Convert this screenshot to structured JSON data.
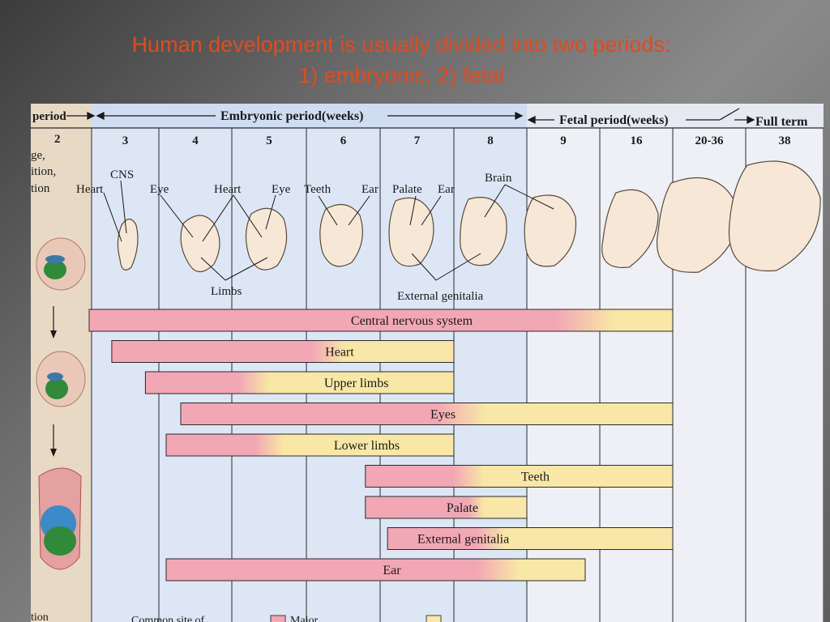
{
  "slide": {
    "title_line1": "Human development is usually divided into two periods:",
    "title_line2": "1) embryonic,  2) fetal"
  },
  "figure": {
    "header": {
      "left_period": "period",
      "embryonic": "Embryonic period(weeks)",
      "fetal": "Fetal period(weeks)",
      "full_term": "Full term"
    },
    "left_col": {
      "week": "2",
      "labels": [
        "ge,",
        "ition,",
        "tion"
      ]
    },
    "weeks": [
      "3",
      "4",
      "5",
      "6",
      "7",
      "8",
      "9",
      "16",
      "20-36",
      "38"
    ],
    "organ_labels": [
      {
        "text": "CNS",
        "id": "cns"
      },
      {
        "text": "Heart",
        "id": "heart-3"
      },
      {
        "text": "Eye",
        "id": "eye-4"
      },
      {
        "text": "Heart",
        "id": "heart-5"
      },
      {
        "text": "Eye",
        "id": "eye-5"
      },
      {
        "text": "Teeth",
        "id": "teeth"
      },
      {
        "text": "Ear",
        "id": "ear-6"
      },
      {
        "text": "Palate",
        "id": "palate"
      },
      {
        "text": "Ear",
        "id": "ear-8"
      },
      {
        "text": "Brain",
        "id": "brain"
      },
      {
        "text": "Limbs",
        "id": "limbs"
      },
      {
        "text": "External genitalia",
        "id": "ext-genitalia"
      }
    ],
    "bars": [
      {
        "label": "Central nervous system",
        "start": 3,
        "major_end": 9.8,
        "end": 11
      },
      {
        "label": "Heart",
        "start": 3.3,
        "major_end": 6.3,
        "end": 8
      },
      {
        "label": "Upper limbs",
        "start": 3.8,
        "major_end": 5.3,
        "end": 8
      },
      {
        "label": "Eyes",
        "start": 4.3,
        "major_end": 8.1,
        "end": 11
      },
      {
        "label": "Lower limbs",
        "start": 4.1,
        "major_end": 5.5,
        "end": 8
      },
      {
        "label": "Teeth",
        "start": 6.8,
        "major_end": 8.2,
        "end": 11
      },
      {
        "label": "Palate",
        "start": 6.8,
        "major_end": 8.3,
        "end": 9
      },
      {
        "label": "External genitalia",
        "start": 7.1,
        "major_end": 8.5,
        "end": 11
      },
      {
        "label": "Ear",
        "start": 4.1,
        "major_end": 8.6,
        "end": 9.8
      }
    ],
    "bottom_text": "tion",
    "legend_text": "Common site of",
    "legend_text2": "Major",
    "colors": {
      "embryonic_bg": "#dde6f5",
      "fetal_bg": "#eef0f6",
      "header_band": "#cfdcf2",
      "major": "#f2a7b5",
      "minor": "#f8e7a6",
      "grid": "#2a2a2a",
      "left_col": "#e8d9c4"
    }
  }
}
